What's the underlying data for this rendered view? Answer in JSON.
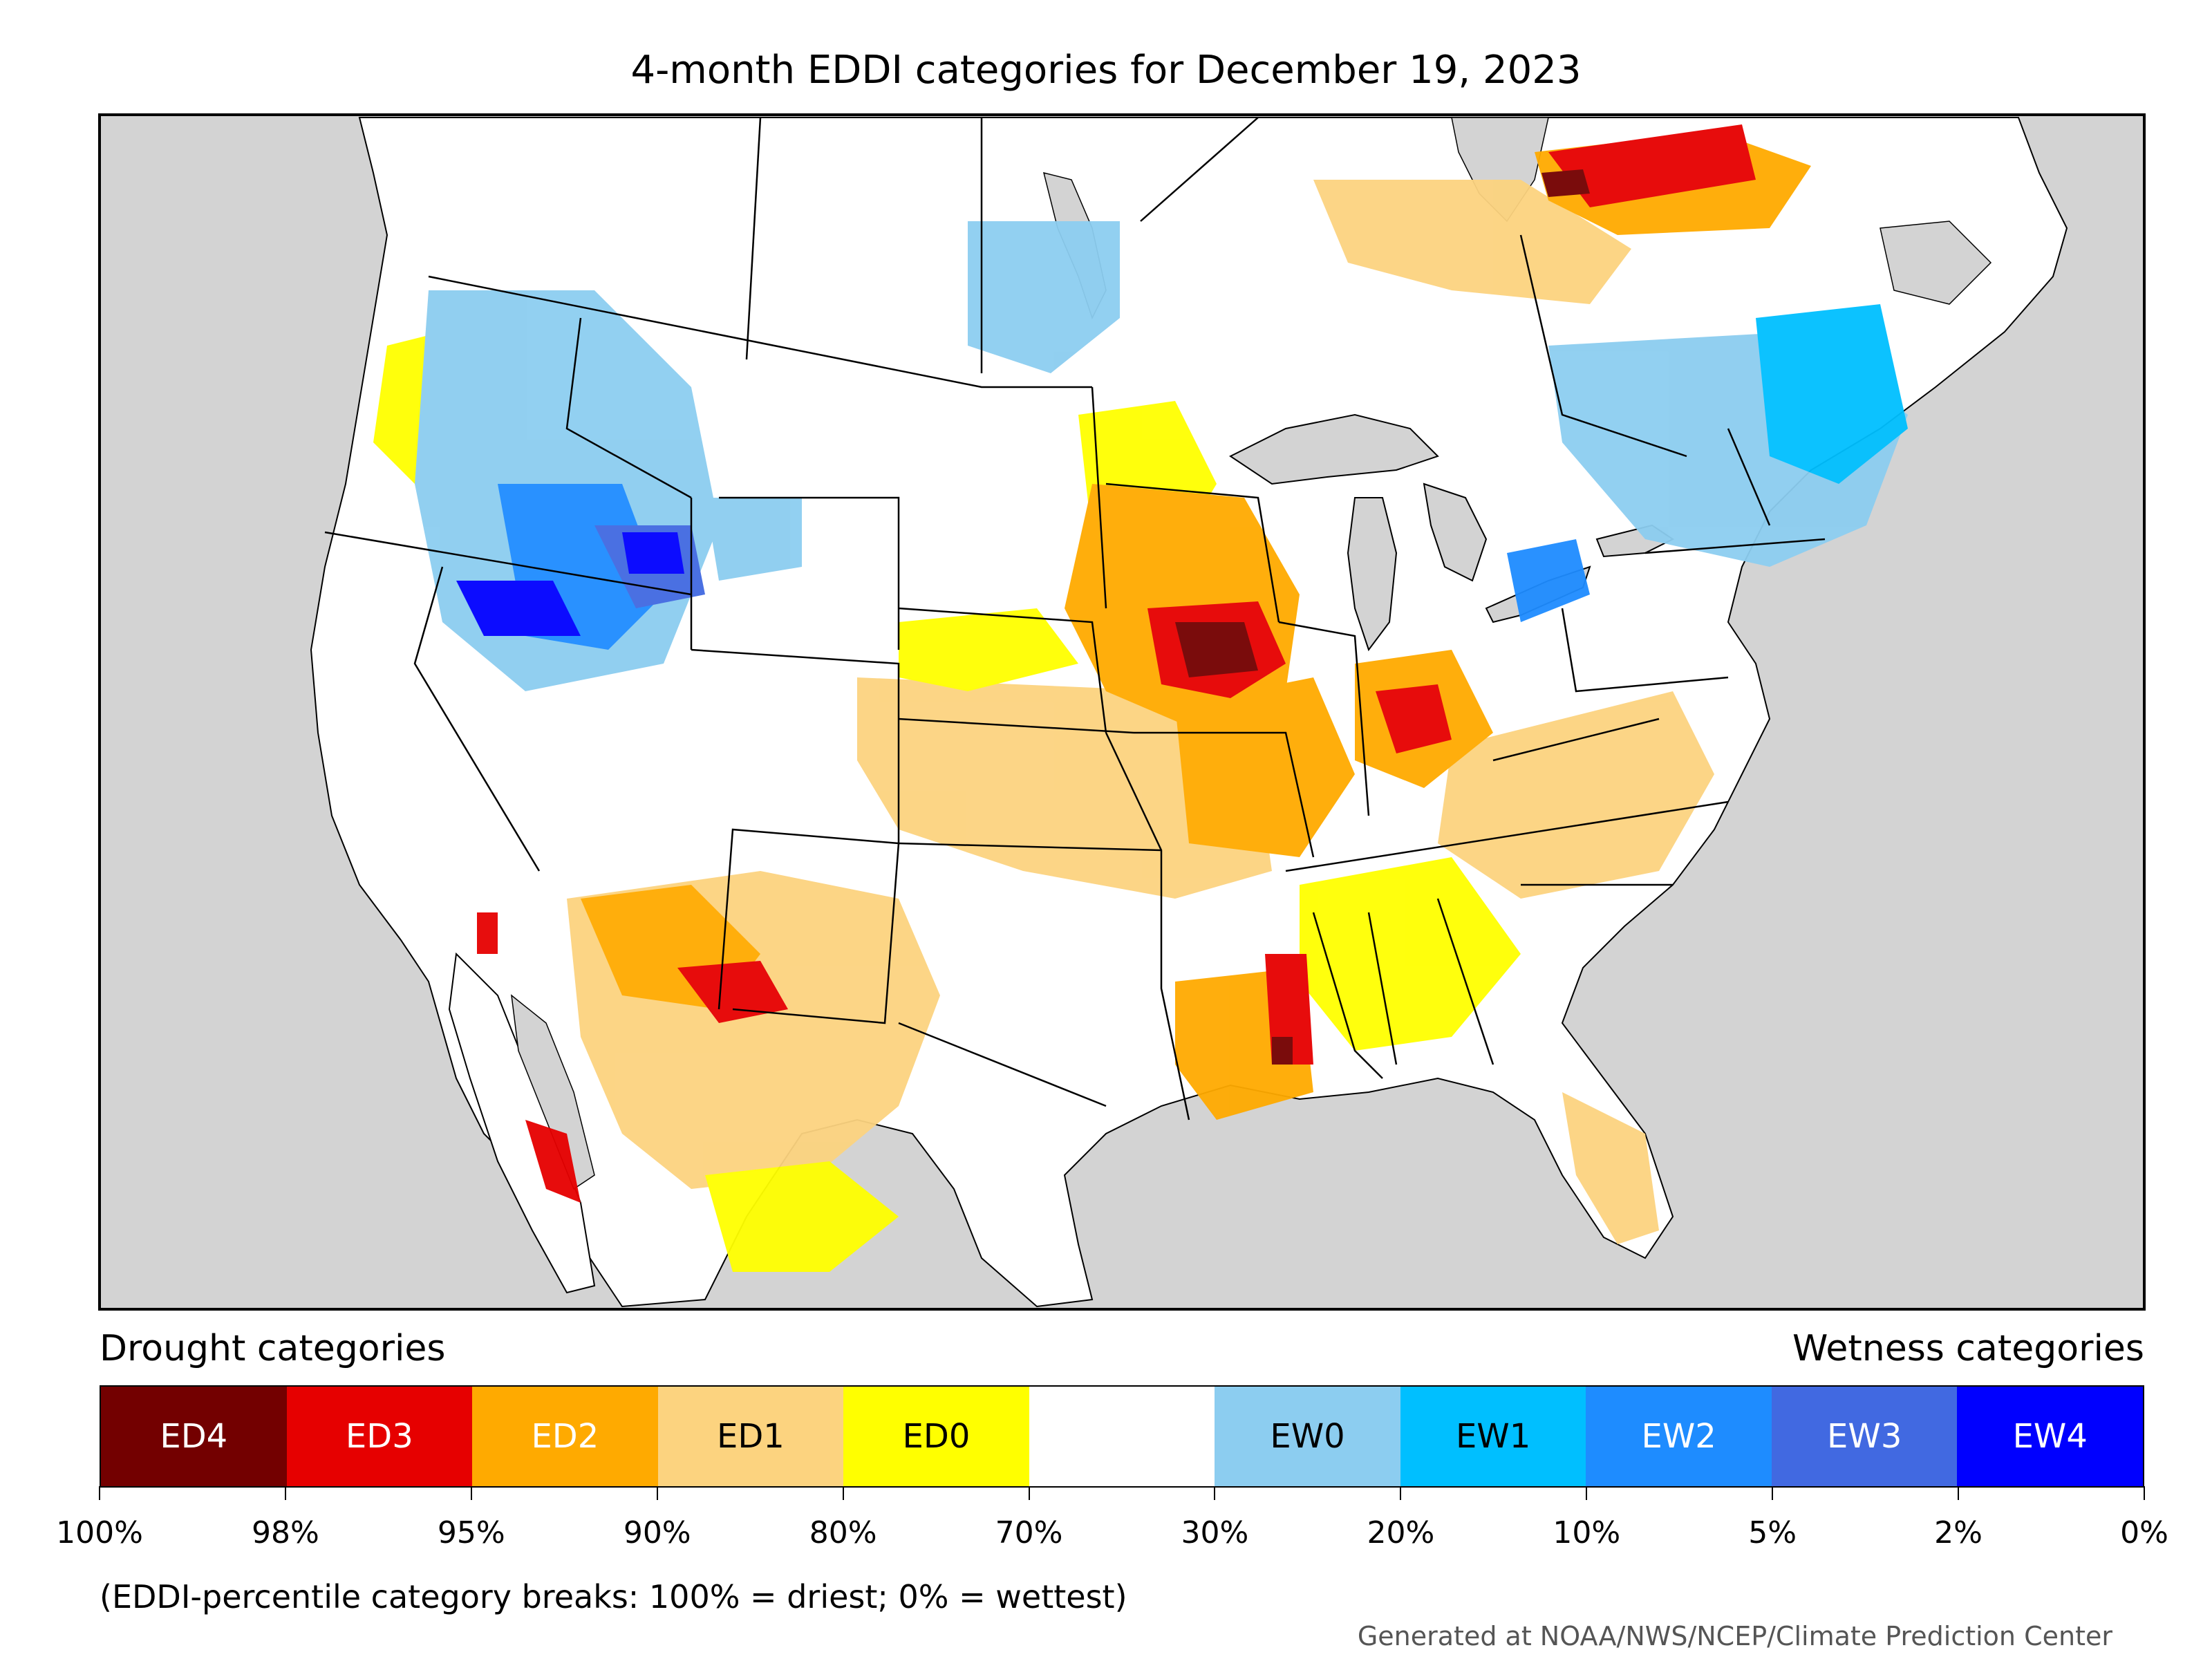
{
  "title": "4-month EDDI categories for December 19, 2023",
  "legend": {
    "left_label": "Drought categories",
    "right_label": "Wetness categories",
    "categories": [
      {
        "label": "ED4",
        "color": "#730000",
        "text_color": "#ffffff"
      },
      {
        "label": "ED3",
        "color": "#e60000",
        "text_color": "#ffffff"
      },
      {
        "label": "ED2",
        "color": "#ffaa00",
        "text_color": "#ffffff"
      },
      {
        "label": "ED1",
        "color": "#fcd37f",
        "text_color": "#000000"
      },
      {
        "label": "ED0",
        "color": "#ffff00",
        "text_color": "#000000"
      },
      {
        "label": "",
        "color": "#ffffff",
        "text_color": "#000000"
      },
      {
        "label": "EW0",
        "color": "#8ccdf0",
        "text_color": "#000000"
      },
      {
        "label": "EW1",
        "color": "#00bfff",
        "text_color": "#000000"
      },
      {
        "label": "EW2",
        "color": "#1e8cff",
        "text_color": "#ffffff"
      },
      {
        "label": "EW3",
        "color": "#4169e1",
        "text_color": "#ffffff"
      },
      {
        "label": "EW4",
        "color": "#0000ff",
        "text_color": "#ffffff"
      }
    ],
    "ticks": [
      "100%",
      "98%",
      "95%",
      "90%",
      "80%",
      "70%",
      "30%",
      "20%",
      "10%",
      "5%",
      "2%",
      "0%"
    ]
  },
  "note": "(EDDI-percentile category breaks: 100% = driest; 0% = wettest)",
  "credit": "Generated at NOAA/NWS/NCEP/Climate Prediction Center",
  "colors": {
    "water": "#d3d3d3",
    "land": "#ffffff",
    "border": "#000000"
  }
}
